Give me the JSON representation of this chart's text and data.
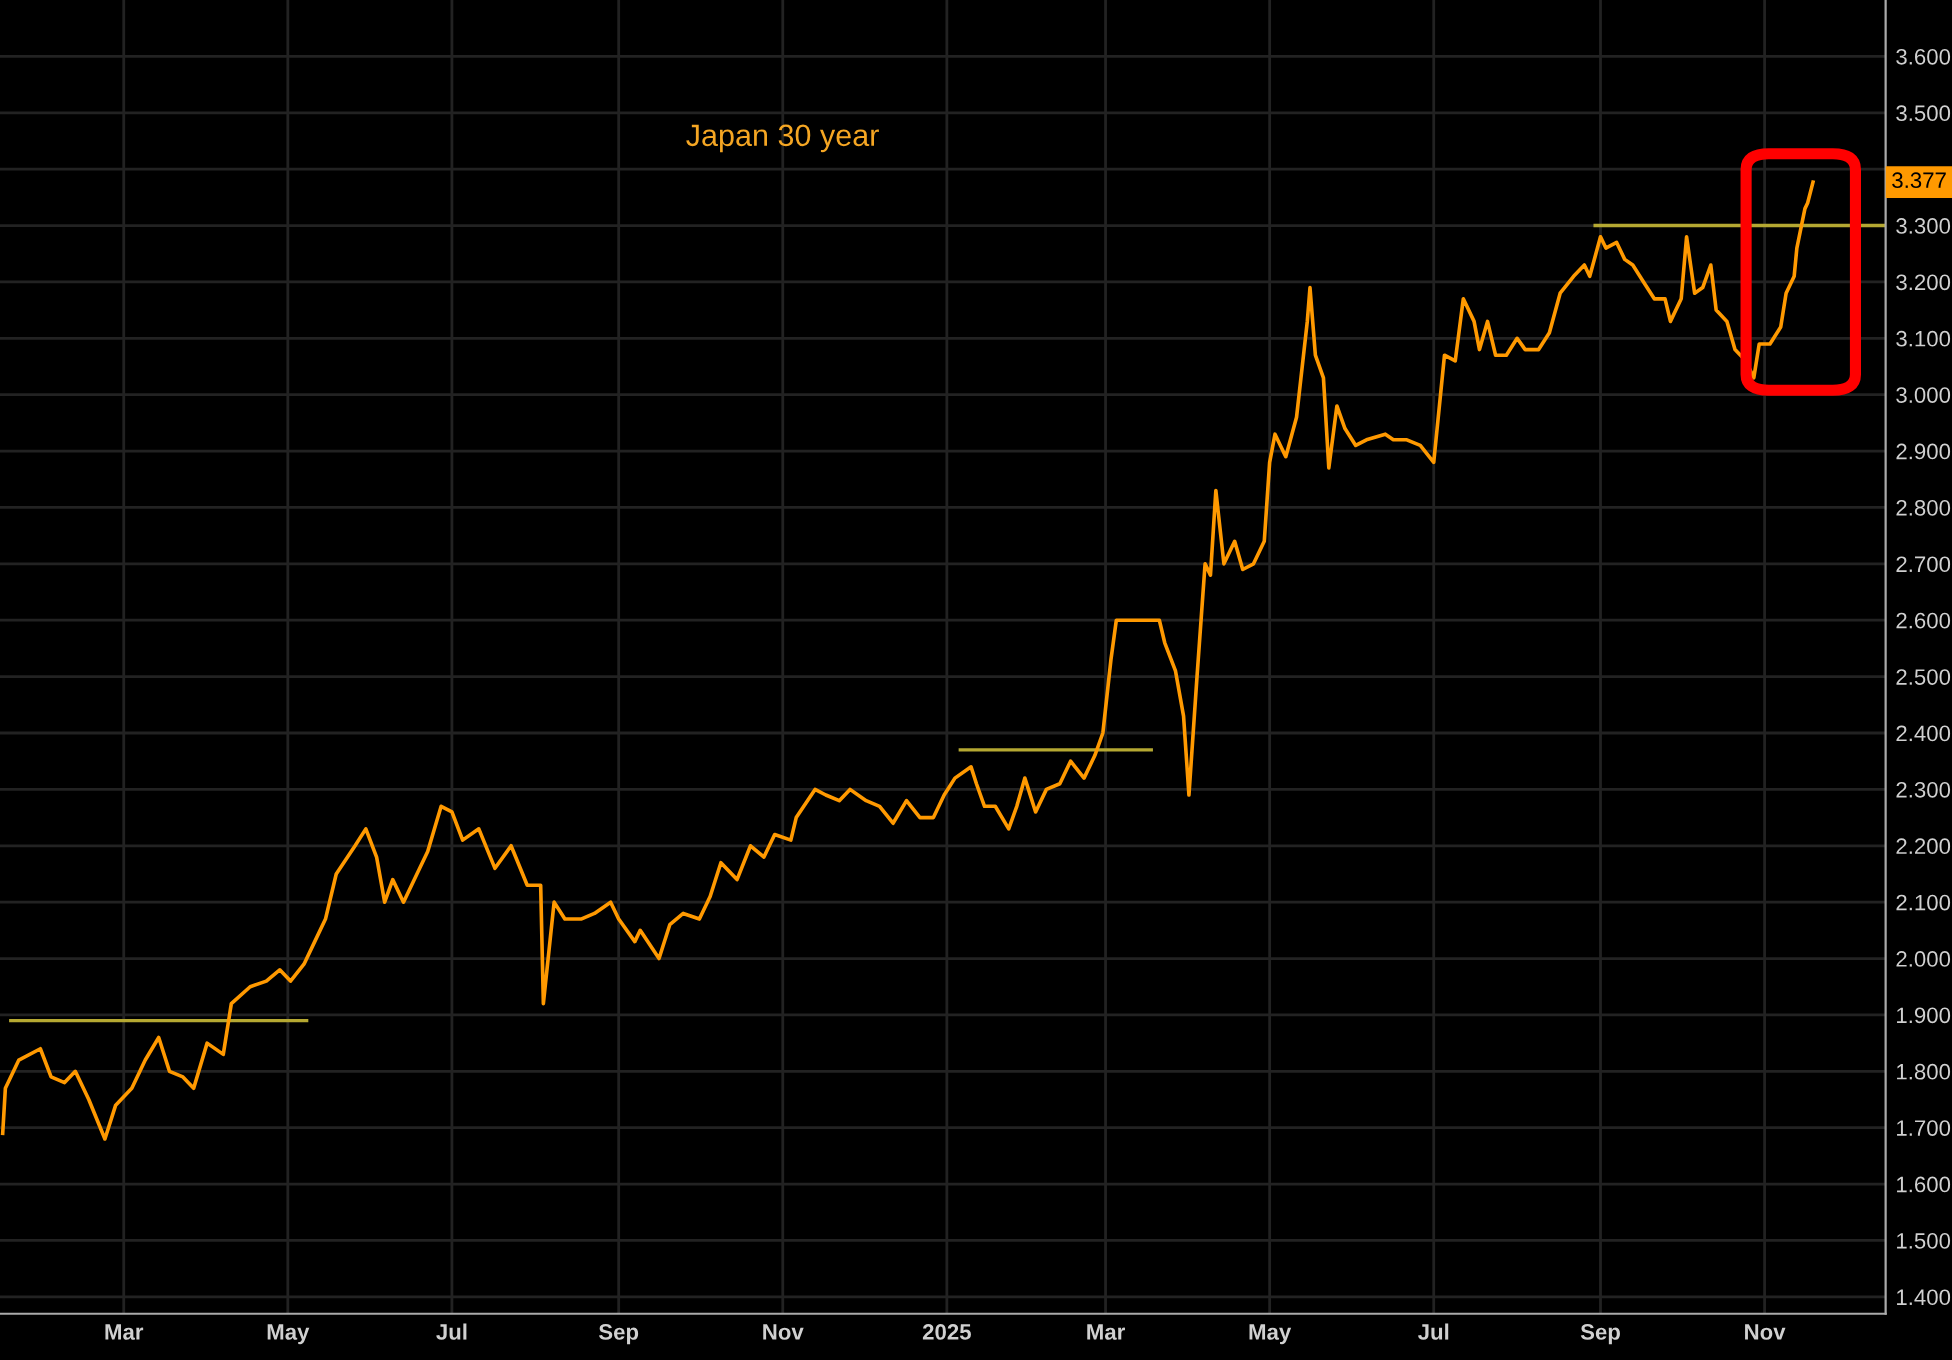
{
  "chart_data": {
    "type": "line",
    "title": "Japan 30 year",
    "x": [
      "2024-01-16",
      "2024-01-17",
      "2024-01-22",
      "2024-01-30",
      "2024-02-03",
      "2024-02-08",
      "2024-02-12",
      "2024-02-17",
      "2024-02-23",
      "2024-02-27",
      "2024-03-04",
      "2024-03-09",
      "2024-03-14",
      "2024-03-18",
      "2024-03-23",
      "2024-03-27",
      "2024-04-01",
      "2024-04-07",
      "2024-04-10",
      "2024-04-17",
      "2024-04-23",
      "2024-04-28",
      "2024-05-02",
      "2024-05-07",
      "2024-05-11",
      "2024-05-15",
      "2024-05-19",
      "2024-05-26",
      "2024-05-30",
      "2024-06-03",
      "2024-06-06",
      "2024-06-09",
      "2024-06-13",
      "2024-06-18",
      "2024-06-22",
      "2024-06-27",
      "2024-07-01",
      "2024-07-05",
      "2024-07-11",
      "2024-07-17",
      "2024-07-23",
      "2024-07-29",
      "2024-08-03",
      "2024-08-04",
      "2024-08-08",
      "2024-08-12",
      "2024-08-18",
      "2024-08-23",
      "2024-08-29",
      "2024-09-01",
      "2024-09-07",
      "2024-09-09",
      "2024-09-16",
      "2024-09-20",
      "2024-09-25",
      "2024-10-01",
      "2024-10-05",
      "2024-10-09",
      "2024-10-15",
      "2024-10-20",
      "2024-10-25",
      "2024-10-29",
      "2024-11-04",
      "2024-11-06",
      "2024-11-13",
      "2024-11-17",
      "2024-11-22",
      "2024-11-26",
      "2024-12-02",
      "2024-12-07",
      "2024-12-12",
      "2024-12-17",
      "2024-12-22",
      "2024-12-27",
      "2024-12-31",
      "2025-01-04",
      "2025-01-10",
      "2025-01-12",
      "2025-01-15",
      "2025-01-19",
      "2025-01-24",
      "2025-01-27",
      "2025-01-30",
      "2025-02-03",
      "2025-02-07",
      "2025-02-12",
      "2025-02-16",
      "2025-02-21",
      "2025-02-25",
      "2025-02-28",
      "2025-03-03",
      "2025-03-05",
      "2025-03-12",
      "2025-03-16",
      "2025-03-21",
      "2025-03-23",
      "2025-03-27",
      "2025-03-30",
      "2025-04-01",
      "2025-04-04",
      "2025-04-07",
      "2025-04-09",
      "2025-04-11",
      "2025-04-14",
      "2025-04-18",
      "2025-04-21",
      "2025-04-25",
      "2025-04-29",
      "2025-05-01",
      "2025-05-03",
      "2025-05-07",
      "2025-05-11",
      "2025-05-15",
      "2025-05-16",
      "2025-05-18",
      "2025-05-21",
      "2025-05-23",
      "2025-05-26",
      "2025-05-29",
      "2025-06-02",
      "2025-06-06",
      "2025-06-13",
      "2025-06-16",
      "2025-06-21",
      "2025-06-26",
      "2025-07-01",
      "2025-07-05",
      "2025-07-09",
      "2025-07-12",
      "2025-07-16",
      "2025-07-18",
      "2025-07-21",
      "2025-07-24",
      "2025-07-28",
      "2025-08-01",
      "2025-08-04",
      "2025-08-09",
      "2025-08-13",
      "2025-08-17",
      "2025-08-22",
      "2025-08-26",
      "2025-08-28",
      "2025-09-01",
      "2025-09-03",
      "2025-09-07",
      "2025-09-10",
      "2025-09-13",
      "2025-09-17",
      "2025-09-21",
      "2025-09-25",
      "2025-09-27",
      "2025-10-01",
      "2025-10-03",
      "2025-10-06",
      "2025-10-09",
      "2025-10-12",
      "2025-10-14",
      "2025-10-18",
      "2025-10-21",
      "2025-10-25",
      "2025-10-28",
      "2025-10-30",
      "2025-11-03",
      "2025-11-07",
      "2025-11-09",
      "2025-11-12",
      "2025-11-13",
      "2025-11-16",
      "2025-11-17",
      "2025-11-19"
    ],
    "series": [
      {
        "color": "#ff9900",
        "values": [
          1.69,
          1.77,
          1.82,
          1.84,
          1.79,
          1.78,
          1.8,
          1.75,
          1.68,
          1.74,
          1.77,
          1.82,
          1.86,
          1.8,
          1.79,
          1.77,
          1.85,
          1.83,
          1.92,
          1.95,
          1.96,
          1.98,
          1.96,
          1.99,
          2.03,
          2.07,
          2.15,
          2.2,
          2.23,
          2.18,
          2.1,
          2.14,
          2.1,
          2.15,
          2.19,
          2.27,
          2.26,
          2.21,
          2.23,
          2.16,
          2.2,
          2.13,
          2.13,
          1.92,
          2.1,
          2.07,
          2.07,
          2.08,
          2.1,
          2.07,
          2.03,
          2.05,
          2.0,
          2.06,
          2.08,
          2.07,
          2.11,
          2.17,
          2.14,
          2.2,
          2.18,
          2.22,
          2.21,
          2.25,
          2.3,
          2.29,
          2.28,
          2.3,
          2.28,
          2.27,
          2.24,
          2.28,
          2.25,
          2.25,
          2.29,
          2.32,
          2.34,
          2.31,
          2.27,
          2.27,
          2.23,
          2.27,
          2.32,
          2.26,
          2.3,
          2.31,
          2.35,
          2.32,
          2.36,
          2.4,
          2.53,
          2.6,
          2.6,
          2.6,
          2.6,
          2.56,
          2.51,
          2.43,
          2.29,
          2.5,
          2.7,
          2.68,
          2.83,
          2.7,
          2.74,
          2.69,
          2.7,
          2.74,
          2.88,
          2.93,
          2.89,
          2.96,
          3.13,
          3.19,
          3.07,
          3.03,
          2.87,
          2.98,
          2.94,
          2.91,
          2.92,
          2.93,
          2.92,
          2.92,
          2.91,
          2.88,
          3.07,
          3.06,
          3.17,
          3.13,
          3.08,
          3.13,
          3.07,
          3.07,
          3.1,
          3.08,
          3.08,
          3.11,
          3.18,
          3.21,
          3.23,
          3.21,
          3.28,
          3.26,
          3.27,
          3.24,
          3.23,
          3.2,
          3.17,
          3.17,
          3.13,
          3.17,
          3.28,
          3.18,
          3.19,
          3.23,
          3.15,
          3.13,
          3.08,
          3.06,
          3.03,
          3.09,
          3.09,
          3.12,
          3.18,
          3.21,
          3.26,
          3.33,
          3.34,
          3.377
        ]
      },
      {
        "type": "line",
        "color": "#b5a832",
        "x": [
          "2024-01-19",
          "2024-05-08"
        ],
        "values": [
          1.89,
          1.89
        ]
      },
      {
        "type": "line",
        "color": "#b5a832",
        "x": [
          "2025-01-06",
          "2025-03-18"
        ],
        "values": [
          2.37,
          2.37
        ]
      },
      {
        "type": "line",
        "color": "#b5a832",
        "x": [
          "2025-08-30",
          "2025-12-16"
        ],
        "values": [
          3.3,
          3.3
        ]
      }
    ],
    "annotations": [
      {
        "text": "3.377",
        "y": 3.377
      }
    ],
    "xlim": [
      "2024-01-15",
      "2025-12-16"
    ],
    "xticks": [
      {
        "value": "2024-03-01",
        "label": "Mar"
      },
      {
        "value": "2024-05-01",
        "label": "May"
      },
      {
        "value": "2024-07-01",
        "label": "Jul"
      },
      {
        "value": "2024-09-01",
        "label": "Sep"
      },
      {
        "value": "2024-11-01",
        "label": "Nov"
      },
      {
        "value": "2025-01-01",
        "label": "2025"
      },
      {
        "value": "2025-03-01",
        "label": "Mar"
      },
      {
        "value": "2025-05-01",
        "label": "May"
      },
      {
        "value": "2025-07-01",
        "label": "Jul"
      },
      {
        "value": "2025-09-01",
        "label": "Sep"
      },
      {
        "value": "2025-11-01",
        "label": "Nov"
      }
    ],
    "ylim": [
      1.37,
      3.7
    ],
    "yticks": [
      {
        "value": 1.4,
        "label": "1.400"
      },
      {
        "value": 1.5,
        "label": "1.500"
      },
      {
        "value": 1.6,
        "label": "1.600"
      },
      {
        "value": 1.7,
        "label": "1.700"
      },
      {
        "value": 1.8,
        "label": "1.800"
      },
      {
        "value": 1.9,
        "label": "1.900"
      },
      {
        "value": 2.0,
        "label": "2.000"
      },
      {
        "value": 2.1,
        "label": "2.100"
      },
      {
        "value": 2.2,
        "label": "2.200"
      },
      {
        "value": 2.3,
        "label": "2.300"
      },
      {
        "value": 2.4,
        "label": "2.400"
      },
      {
        "value": 2.5,
        "label": "2.500"
      },
      {
        "value": 2.6,
        "label": "2.600"
      },
      {
        "value": 2.7,
        "label": "2.700"
      },
      {
        "value": 2.8,
        "label": "2.800"
      },
      {
        "value": 2.9,
        "label": "2.900"
      },
      {
        "value": 3.0,
        "label": "3.000"
      },
      {
        "value": 3.1,
        "label": "3.100"
      },
      {
        "value": 3.2,
        "label": "3.200"
      },
      {
        "value": 3.3,
        "label": "3.300"
      },
      {
        "value": 3.4,
        "label": null
      },
      {
        "value": 3.5,
        "label": "3.500"
      },
      {
        "value": 3.6,
        "label": "3.600"
      }
    ],
    "grid": true,
    "line_style": "solid"
  }
}
